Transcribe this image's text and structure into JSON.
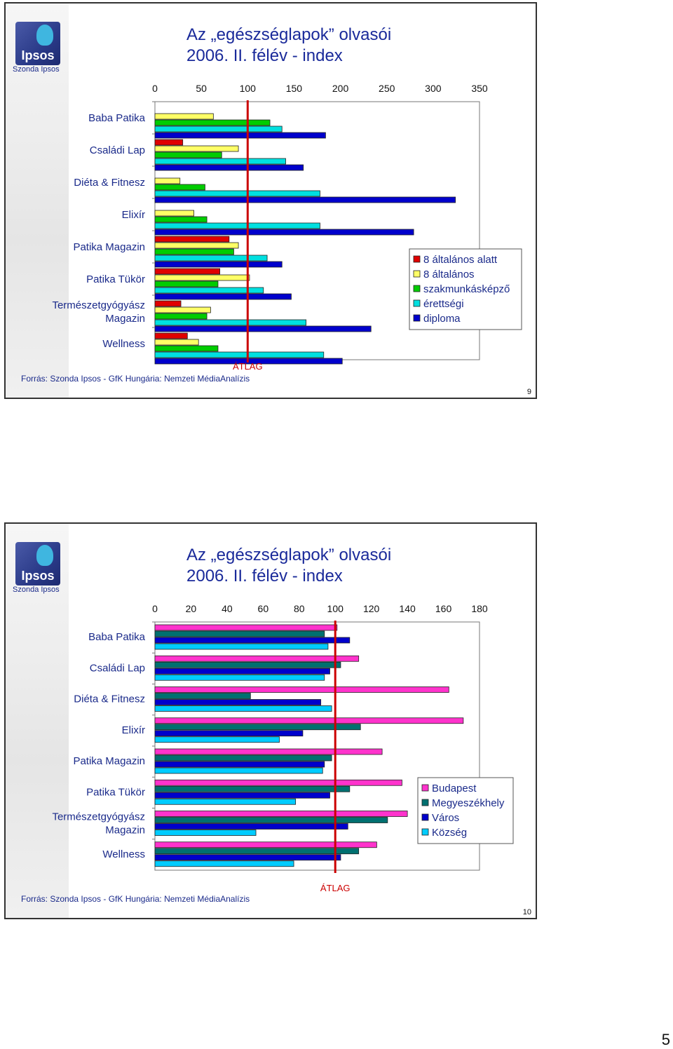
{
  "slides": [
    {
      "brand": "Szonda Ipsos",
      "logo_text": "Ipsos",
      "title_line1": "Az „egészséglapok” olvasói",
      "title_line2": "2006. II. félév - index",
      "source": "Forrás: Szonda Ipsos - GfK Hungária: Nemzeti MédiaAnalízis",
      "page_number": "9"
    },
    {
      "brand": "Szonda Ipsos",
      "logo_text": "Ipsos",
      "title_line1": "Az „egészséglapok” olvasói",
      "title_line2": "2006. II. félév - index",
      "source": "Forrás: Szonda Ipsos - GfK Hungária: Nemzeti MédiaAnalízis",
      "page_number": "10"
    }
  ],
  "document_page_number": "5",
  "chart_data": [
    {
      "type": "bar",
      "orientation": "horizontal",
      "categories": [
        "Baba Patika",
        "Családi Lap",
        "Diéta & Fitnesz",
        "Elixír",
        "Patika Magazin",
        "Patika Tükör",
        "Természetgyógyász\nMagazin",
        "Wellness"
      ],
      "series": [
        {
          "name": "8 általános alatt",
          "color": "#e00000",
          "values": [
            0,
            30,
            0,
            0,
            80,
            70,
            28,
            35
          ]
        },
        {
          "name": "8 általános",
          "color": "#ffff66",
          "values": [
            63,
            90,
            27,
            42,
            90,
            102,
            60,
            47
          ]
        },
        {
          "name": "szakmunkásképző",
          "color": "#00cc00",
          "values": [
            124,
            72,
            54,
            56,
            85,
            68,
            56,
            68
          ]
        },
        {
          "name": "érettségi",
          "color": "#00e0e0",
          "values": [
            137,
            141,
            178,
            178,
            121,
            117,
            163,
            182
          ]
        },
        {
          "name": "diploma",
          "color": "#0000cc",
          "values": [
            184,
            160,
            324,
            279,
            137,
            147,
            233,
            202
          ]
        }
      ],
      "x_ticks": [
        "0",
        "50",
        "100",
        "150",
        "200",
        "250",
        "300",
        "350"
      ],
      "xlim": [
        0,
        350
      ],
      "reference_line": {
        "value": 100,
        "label": "ÁTLAG",
        "color": "#cc0000"
      },
      "legend_position": "right",
      "grid": false
    },
    {
      "type": "bar",
      "orientation": "horizontal",
      "categories": [
        "Baba Patika",
        "Családi Lap",
        "Diéta & Fitnesz",
        "Elixír",
        "Patika Magazin",
        "Patika Tükör",
        "Természetgyógyász\nMagazin",
        "Wellness"
      ],
      "series": [
        {
          "name": "Budapest",
          "color": "#ff33cc",
          "values": [
            101,
            113,
            163,
            171,
            126,
            137,
            140,
            123
          ]
        },
        {
          "name": "Megyeszékhely",
          "color": "#007070",
          "values": [
            94,
            103,
            53,
            114,
            98,
            108,
            129,
            113
          ]
        },
        {
          "name": "Város",
          "color": "#0000cc",
          "values": [
            108,
            97,
            92,
            82,
            94,
            97,
            107,
            103
          ]
        },
        {
          "name": "Község",
          "color": "#00ccff",
          "values": [
            96,
            94,
            98,
            69,
            93,
            78,
            56,
            77
          ]
        }
      ],
      "x_ticks": [
        "0",
        "20",
        "40",
        "60",
        "80",
        "100",
        "120",
        "140",
        "160",
        "180"
      ],
      "xlim": [
        0,
        180
      ],
      "reference_line": {
        "value": 100,
        "label": "ÁTLAG",
        "color": "#cc0000"
      },
      "legend_position": "right",
      "grid": false
    }
  ]
}
